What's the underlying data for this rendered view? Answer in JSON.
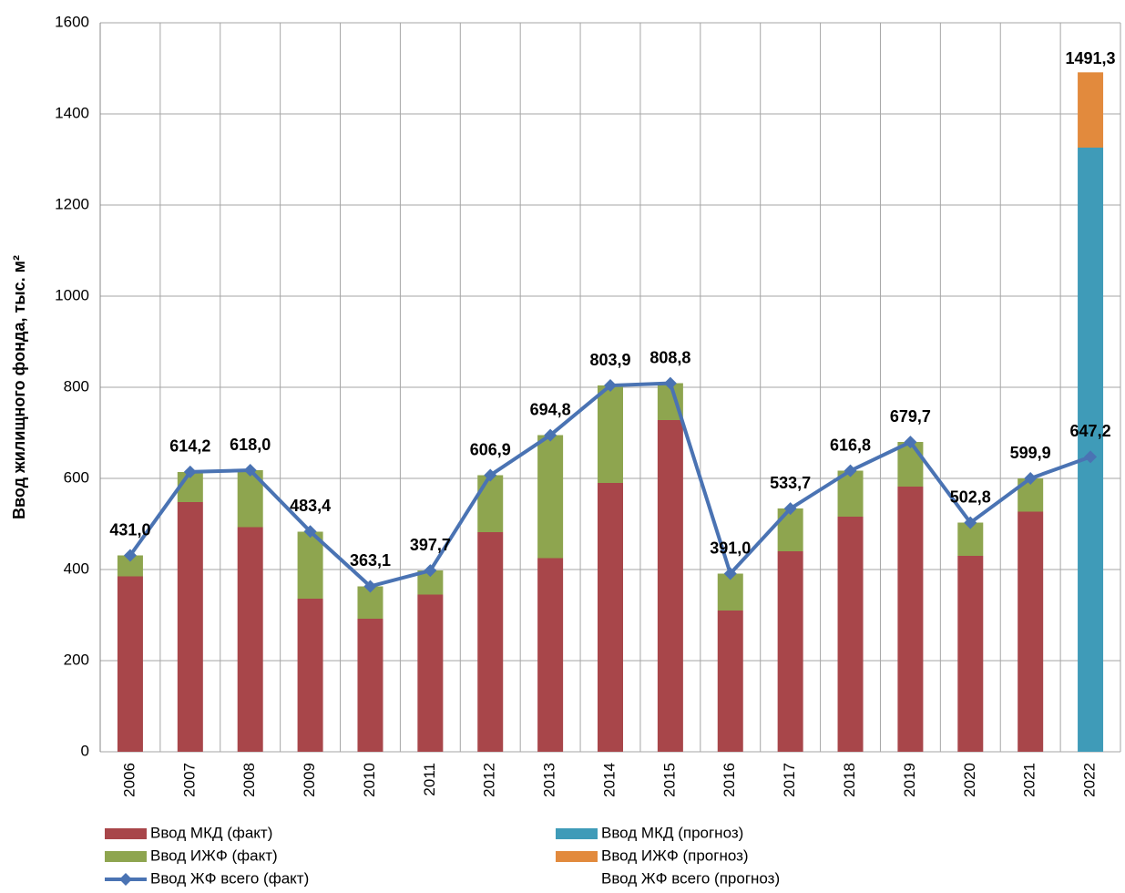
{
  "chart_data": {
    "type": "bar",
    "y_label": "Ввод жилищного фонда, тыс. м²",
    "categories": [
      "2006",
      "2007",
      "2008",
      "2009",
      "2010",
      "2011",
      "2012",
      "2013",
      "2014",
      "2015",
      "2016",
      "2017",
      "2018",
      "2019",
      "2020",
      "2021",
      "2022"
    ],
    "ylim": [
      0,
      1600
    ],
    "yticks": [
      0,
      200,
      400,
      600,
      800,
      1000,
      1200,
      1400,
      1600
    ],
    "grid": true,
    "series": [
      {
        "name": "Ввод МКД (факт)",
        "type": "bar",
        "color": "#a8464a",
        "values": [
          385,
          548,
          493,
          336,
          292,
          345,
          482,
          425,
          590,
          728,
          310,
          440,
          516,
          582,
          430,
          527,
          null
        ]
      },
      {
        "name": "Ввод ИЖФ (факт)",
        "type": "bar",
        "color": "#8ea54f",
        "values": [
          46,
          66,
          125,
          147,
          71,
          53,
          125,
          270,
          214,
          81,
          81,
          94,
          101,
          98,
          73,
          73,
          null
        ]
      },
      {
        "name": "Ввод ЖФ всего (факт)",
        "type": "line",
        "color": "#4a73b3",
        "values": [
          431.0,
          614.2,
          618.0,
          483.4,
          363.1,
          397.7,
          606.9,
          694.8,
          803.9,
          808.8,
          391.0,
          533.7,
          616.8,
          679.7,
          502.8,
          599.9,
          647.2
        ],
        "value_labels": [
          "431,0",
          "614,2",
          "618,0",
          "483,4",
          "363,1",
          "397,7",
          "606,9",
          "694,8",
          "803,9",
          "808,8",
          "391,0",
          "533,7",
          "616,8",
          "679,7",
          "502,8",
          "599,9",
          "647,2"
        ]
      },
      {
        "name": "Ввод МКД (прогноз)",
        "type": "bar",
        "color": "#3f9bb8",
        "values": [
          null,
          null,
          null,
          null,
          null,
          null,
          null,
          null,
          null,
          null,
          null,
          null,
          null,
          null,
          null,
          null,
          1326
        ]
      },
      {
        "name": "Ввод ИЖФ (прогноз)",
        "type": "bar",
        "color": "#e28a3d",
        "values": [
          null,
          null,
          null,
          null,
          null,
          null,
          null,
          null,
          null,
          null,
          null,
          null,
          null,
          null,
          null,
          null,
          165.3
        ]
      },
      {
        "name": "Ввод ЖФ всего (прогноз)",
        "type": "line",
        "color": "none",
        "label_color": "#ff0000",
        "values": [
          null,
          null,
          null,
          null,
          null,
          null,
          null,
          null,
          null,
          null,
          null,
          null,
          null,
          null,
          null,
          null,
          1491.3
        ],
        "value_labels": [
          null,
          null,
          null,
          null,
          null,
          null,
          null,
          null,
          null,
          null,
          null,
          null,
          null,
          null,
          null,
          null,
          "1491,3"
        ]
      }
    ]
  }
}
